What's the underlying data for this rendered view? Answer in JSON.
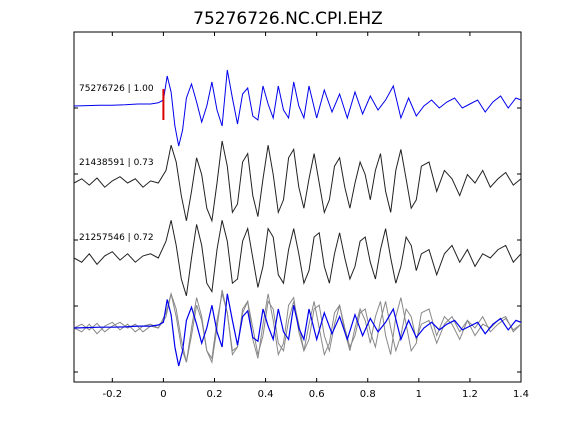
{
  "chart_data": {
    "type": "line",
    "title": "75276726.NC.CPI.EHZ",
    "xlabel": "",
    "ylabel": "",
    "xlim": [
      -0.35,
      1.4
    ],
    "x_ticks": [
      -0.2,
      0,
      0.2,
      0.4,
      0.6,
      0.8,
      1,
      1.2,
      1.4
    ],
    "x_tick_labels": [
      "-0.2",
      "0",
      "0.2",
      "0.4",
      "0.6",
      "0.8",
      "1",
      "1.2",
      "1.4"
    ],
    "grid": false,
    "pick_time": 0,
    "pick_color": "#dd0000",
    "traces": [
      {
        "id": "75276726",
        "label": "75276726 | 1.00",
        "correlation": 1.0,
        "color": "#0000ee",
        "x": [
          -0.35,
          -0.3,
          -0.25,
          -0.2,
          -0.15,
          -0.1,
          -0.05,
          -0.02,
          0,
          0.015,
          0.03,
          0.045,
          0.06,
          0.075,
          0.09,
          0.11,
          0.13,
          0.15,
          0.17,
          0.19,
          0.21,
          0.23,
          0.25,
          0.27,
          0.29,
          0.31,
          0.33,
          0.35,
          0.37,
          0.39,
          0.41,
          0.43,
          0.45,
          0.47,
          0.49,
          0.51,
          0.53,
          0.55,
          0.57,
          0.6,
          0.63,
          0.66,
          0.69,
          0.72,
          0.75,
          0.78,
          0.81,
          0.84,
          0.87,
          0.9,
          0.93,
          0.96,
          0.99,
          1.02,
          1.05,
          1.08,
          1.11,
          1.14,
          1.17,
          1.2,
          1.23,
          1.26,
          1.29,
          1.32,
          1.35,
          1.38,
          1.4
        ],
        "y": [
          0,
          0.01,
          0.02,
          0.02,
          0.03,
          0.05,
          0.05,
          0.08,
          0.15,
          0.75,
          0.35,
          -0.5,
          -1.0,
          -0.6,
          0.2,
          0.55,
          0.1,
          -0.4,
          0.0,
          0.6,
          -0.1,
          -0.5,
          0.9,
          0.2,
          -0.45,
          0.3,
          0.45,
          -0.25,
          -0.35,
          0.5,
          0.05,
          -0.3,
          0.5,
          -0.1,
          -0.3,
          0.6,
          0.0,
          -0.3,
          0.5,
          -0.3,
          0.4,
          -0.15,
          0.3,
          -0.3,
          0.35,
          -0.2,
          0.25,
          -0.1,
          0.15,
          0.5,
          -0.3,
          0.2,
          -0.25,
          0.0,
          0.15,
          -0.05,
          0.1,
          0.2,
          -0.05,
          0.05,
          0.15,
          -0.15,
          0.1,
          0.25,
          -0.05,
          0.2,
          0.15
        ]
      },
      {
        "id": "21438591",
        "label": "21438591 | 0.73",
        "correlation": 0.73,
        "color": "#222222",
        "x": [
          -0.35,
          -0.32,
          -0.29,
          -0.26,
          -0.23,
          -0.2,
          -0.17,
          -0.14,
          -0.11,
          -0.08,
          -0.05,
          -0.02,
          0.01,
          0.03,
          0.05,
          0.07,
          0.09,
          0.11,
          0.13,
          0.15,
          0.17,
          0.19,
          0.21,
          0.23,
          0.25,
          0.27,
          0.29,
          0.31,
          0.33,
          0.35,
          0.37,
          0.39,
          0.41,
          0.43,
          0.45,
          0.47,
          0.49,
          0.51,
          0.53,
          0.55,
          0.57,
          0.59,
          0.61,
          0.63,
          0.65,
          0.67,
          0.69,
          0.71,
          0.73,
          0.75,
          0.77,
          0.79,
          0.81,
          0.83,
          0.85,
          0.87,
          0.89,
          0.91,
          0.93,
          0.95,
          0.97,
          0.99,
          1.01,
          1.04,
          1.07,
          1.1,
          1.13,
          1.16,
          1.19,
          1.22,
          1.25,
          1.28,
          1.31,
          1.34,
          1.37,
          1.4
        ],
        "y": [
          0.0,
          0.1,
          -0.05,
          0.12,
          -0.1,
          0.05,
          0.15,
          0.0,
          0.1,
          -0.1,
          0.05,
          0.0,
          0.3,
          0.9,
          0.5,
          -0.3,
          -0.9,
          -0.2,
          0.6,
          0.2,
          -0.6,
          -0.9,
          0.0,
          1.0,
          0.4,
          -0.7,
          -0.5,
          0.5,
          0.7,
          -0.3,
          -0.8,
          0.1,
          0.9,
          0.2,
          -0.7,
          -0.4,
          0.6,
          0.8,
          -0.1,
          -0.6,
          0.1,
          0.7,
          0.0,
          -0.7,
          -0.4,
          0.4,
          0.6,
          -0.1,
          -0.6,
          0.0,
          0.5,
          0.2,
          -0.4,
          0.3,
          0.7,
          -0.2,
          -0.7,
          0.3,
          0.8,
          0.1,
          -0.6,
          -0.4,
          0.4,
          0.5,
          -0.2,
          0.3,
          0.1,
          -0.3,
          0.2,
          0.0,
          0.3,
          -0.1,
          0.1,
          0.25,
          -0.05,
          0.1
        ]
      },
      {
        "id": "21257546",
        "label": "21257546 | 0.72",
        "correlation": 0.72,
        "color": "#222222",
        "x": [
          -0.35,
          -0.32,
          -0.29,
          -0.26,
          -0.23,
          -0.2,
          -0.17,
          -0.14,
          -0.11,
          -0.08,
          -0.05,
          -0.02,
          0.01,
          0.03,
          0.05,
          0.07,
          0.09,
          0.11,
          0.13,
          0.15,
          0.17,
          0.19,
          0.21,
          0.23,
          0.25,
          0.27,
          0.29,
          0.31,
          0.33,
          0.35,
          0.37,
          0.39,
          0.41,
          0.43,
          0.45,
          0.47,
          0.49,
          0.51,
          0.53,
          0.55,
          0.57,
          0.59,
          0.61,
          0.63,
          0.65,
          0.67,
          0.69,
          0.71,
          0.73,
          0.75,
          0.77,
          0.79,
          0.81,
          0.83,
          0.85,
          0.87,
          0.89,
          0.91,
          0.93,
          0.95,
          0.97,
          0.99,
          1.01,
          1.04,
          1.07,
          1.1,
          1.13,
          1.16,
          1.19,
          1.22,
          1.25,
          1.28,
          1.31,
          1.34,
          1.37,
          1.4
        ],
        "y": [
          0.0,
          -0.1,
          0.1,
          -0.15,
          0.05,
          0.15,
          -0.05,
          0.1,
          -0.1,
          0.05,
          0.1,
          0.0,
          0.4,
          0.9,
          0.3,
          -0.5,
          -0.9,
          0.0,
          0.8,
          0.3,
          -0.6,
          -0.8,
          0.2,
          0.9,
          0.4,
          -0.6,
          -0.5,
          0.4,
          0.7,
          0.0,
          -0.7,
          -0.2,
          0.7,
          0.5,
          -0.4,
          -0.6,
          0.2,
          0.7,
          0.1,
          -0.6,
          -0.3,
          0.5,
          0.6,
          -0.2,
          -0.6,
          0.1,
          0.6,
          0.0,
          -0.5,
          -0.2,
          0.4,
          0.5,
          -0.1,
          -0.5,
          0.2,
          0.7,
          0.0,
          -0.6,
          -0.2,
          0.5,
          0.3,
          -0.3,
          0.1,
          0.2,
          -0.4,
          0.1,
          0.3,
          -0.1,
          0.2,
          -0.2,
          0.1,
          0.0,
          0.2,
          0.3,
          -0.1,
          0.1
        ]
      }
    ]
  }
}
